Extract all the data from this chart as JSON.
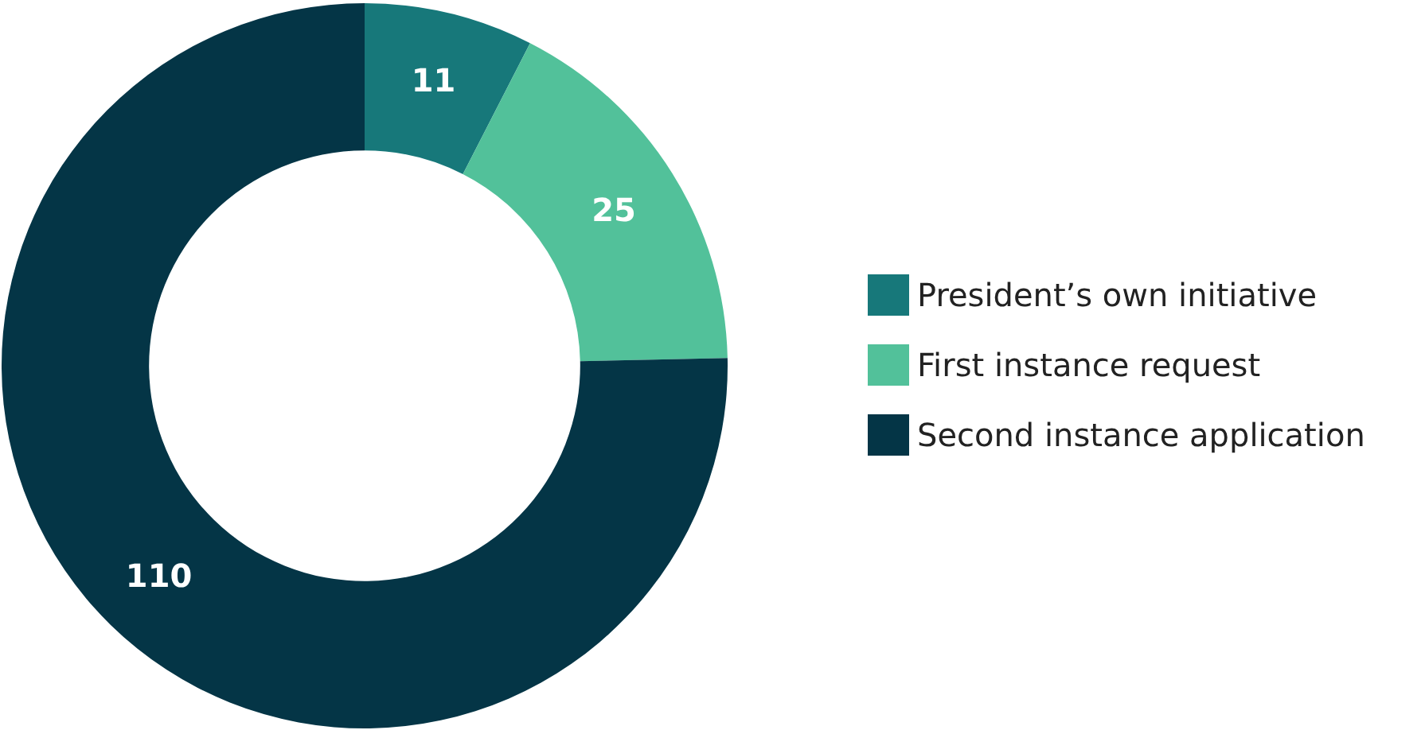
{
  "chart_data": {
    "type": "donut",
    "categories": [
      "President’s own initiative",
      "First instance request",
      "Second instance application"
    ],
    "values": [
      11,
      25,
      110
    ],
    "colors": [
      "#17787a",
      "#52c19a",
      "#043546"
    ],
    "data_labels": true,
    "legend": "right"
  }
}
